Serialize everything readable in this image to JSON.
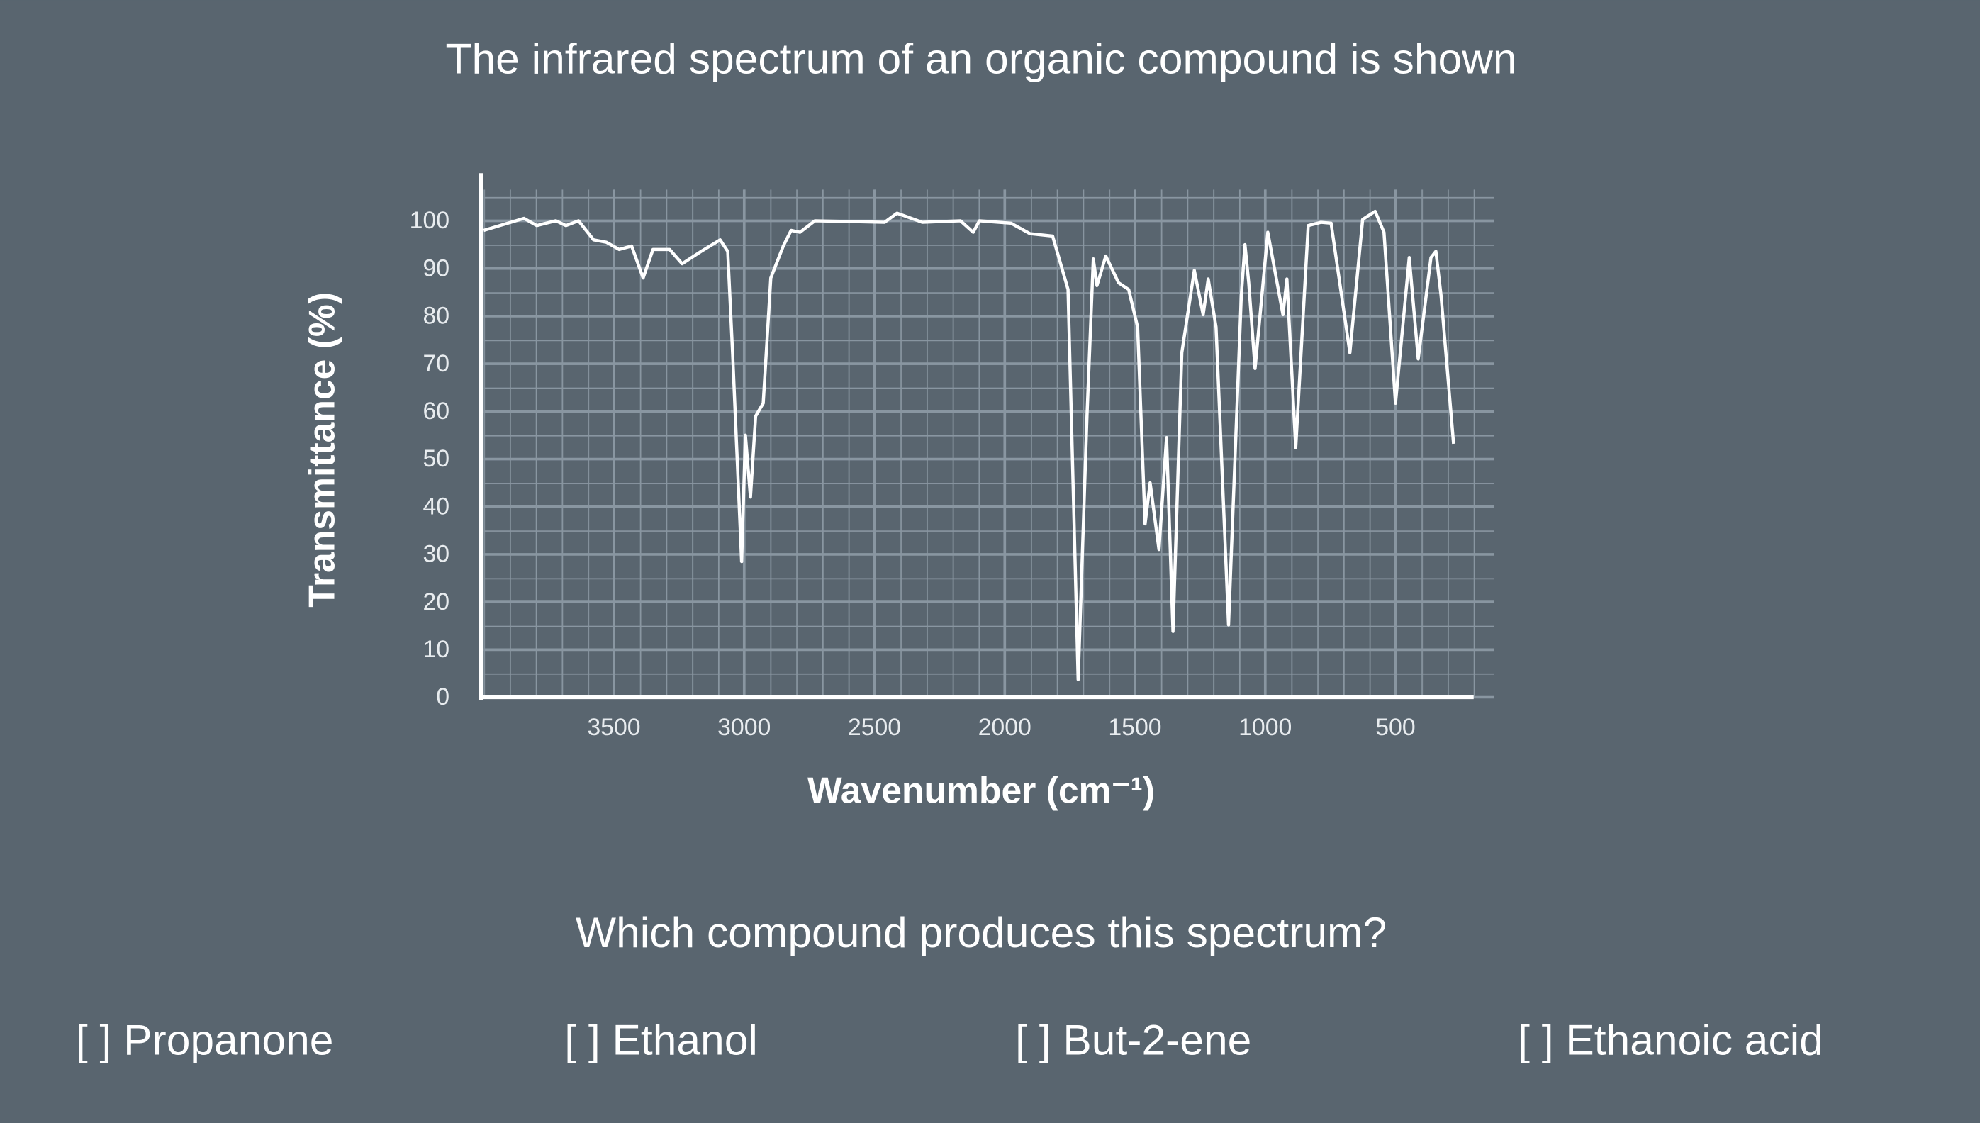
{
  "title": "The infrared spectrum of an organic compound is shown",
  "chart_data": {
    "type": "line",
    "x_label": "Wavenumber (cm⁻¹)",
    "y_label": "Transmittance (%)",
    "xlim": [
      4000,
      200
    ],
    "ylim": [
      0,
      110
    ],
    "xticks": [
      3500,
      3000,
      2500,
      2000,
      1500,
      1000,
      500
    ],
    "yticks": [
      0,
      10,
      20,
      30,
      40,
      50,
      60,
      70,
      80,
      90,
      100
    ],
    "grid": true,
    "color": "#ffffff",
    "x": [
      4000,
      3845,
      3796,
      3723,
      3684,
      3636,
      3578,
      3529,
      3480,
      3432,
      3388,
      3350,
      3286,
      3238,
      3165,
      3092,
      3063,
      3044,
      3010,
      2995,
      2976,
      2956,
      2927,
      2898,
      2850,
      2820,
      2786,
      2728,
      2461,
      2413,
      2316,
      2170,
      2121,
      2097,
      1976,
      1903,
      1816,
      1757,
      1718,
      1684,
      1660,
      1646,
      1612,
      1563,
      1524,
      1490,
      1461,
      1442,
      1408,
      1379,
      1354,
      1320,
      1272,
      1238,
      1219,
      1189,
      1141,
      1092,
      1078,
      1063,
      1039,
      990,
      932,
      917,
      883,
      835,
      786,
      747,
      675,
      626,
      578,
      544,
      500,
      447,
      413,
      364,
      345,
      325,
      277
    ],
    "values": [
      98,
      100.5,
      99,
      100,
      99,
      100,
      96,
      95.5,
      94,
      94.7,
      88,
      94,
      94,
      91,
      93.6,
      96,
      93.6,
      72,
      28.5,
      55,
      42,
      59,
      61.7,
      88,
      94.7,
      98,
      97.6,
      100,
      99.7,
      101.6,
      99.7,
      100,
      97.6,
      100,
      99.5,
      97.3,
      96.8,
      85.6,
      3.7,
      59,
      92,
      86.4,
      92.6,
      87,
      85.6,
      77.7,
      36.4,
      45,
      31,
      54.5,
      13.8,
      72.3,
      89.6,
      80.3,
      87.8,
      77.7,
      15.2,
      84.3,
      95,
      87,
      69,
      97.6,
      80.3,
      87.8,
      52.4,
      99,
      99.7,
      99.5,
      72.3,
      100.3,
      102,
      97.6,
      61.7,
      92.3,
      71,
      92.3,
      93.6,
      84.3,
      53.2
    ]
  },
  "question": "Which compound produces this spectrum?",
  "options": [
    "[ ] Propanone",
    "[ ] Ethanol",
    "[ ] But-2-ene",
    "[ ] Ethanoic acid"
  ]
}
